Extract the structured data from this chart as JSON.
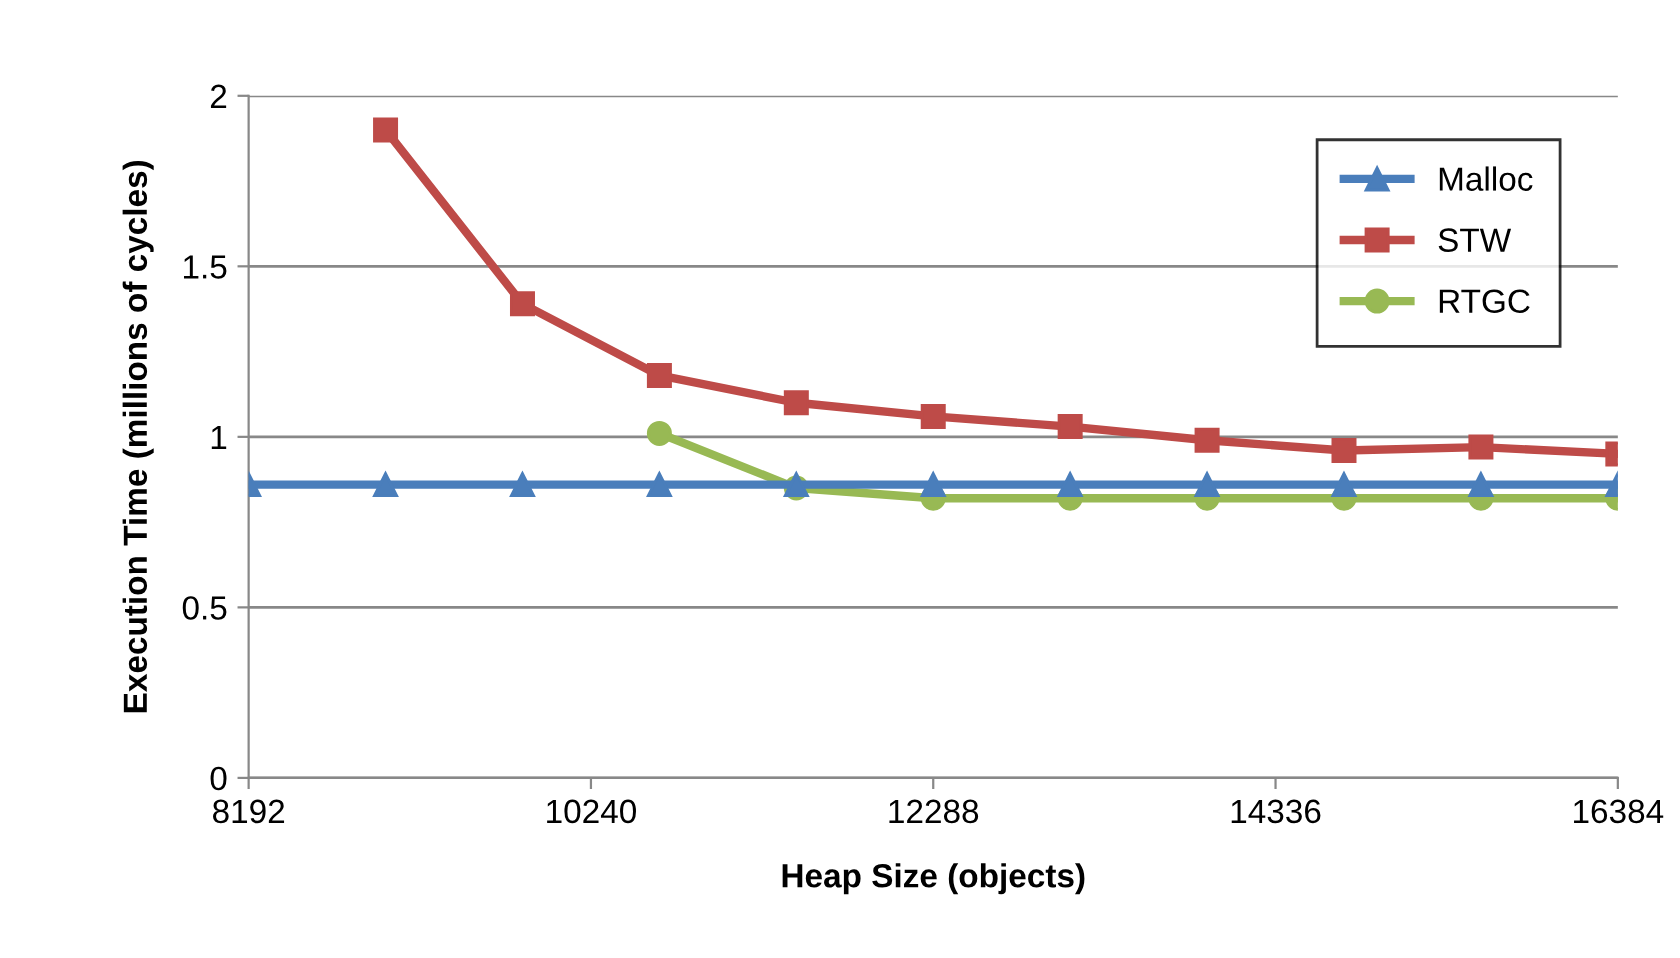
{
  "chart_data": {
    "type": "line",
    "xlabel": "Heap Size (objects)",
    "ylabel": "Execution Time (millions of cycles)",
    "xlim": [
      8192,
      16384
    ],
    "xticks": [
      8192,
      10240,
      12288,
      14336,
      16384
    ],
    "ylim": [
      0,
      2
    ],
    "yticks": [
      0,
      0.5,
      1,
      1.5,
      2
    ],
    "grid": "y",
    "legend": "top right",
    "x": [
      8192,
      9011.2,
      9830.4,
      10649.6,
      11468.8,
      12288,
      13107.2,
      13926.4,
      14745.6,
      15564.8,
      16384
    ],
    "series": [
      {
        "name": "Malloc",
        "color": "#4a7ebb",
        "marker": "triangle",
        "values": [
          0.86,
          0.86,
          0.86,
          0.86,
          0.86,
          0.86,
          0.86,
          0.86,
          0.86,
          0.86,
          0.86
        ]
      },
      {
        "name": "STW",
        "color": "#be4b48",
        "marker": "square",
        "values": [
          null,
          1.9,
          1.39,
          1.18,
          1.1,
          1.06,
          1.03,
          0.99,
          0.96,
          0.97,
          0.95
        ]
      },
      {
        "name": "RTGC",
        "color": "#98b954",
        "marker": "circle",
        "values": [
          null,
          null,
          null,
          1.01,
          0.85,
          0.82,
          0.82,
          0.82,
          0.82,
          0.82,
          0.82
        ]
      }
    ]
  }
}
